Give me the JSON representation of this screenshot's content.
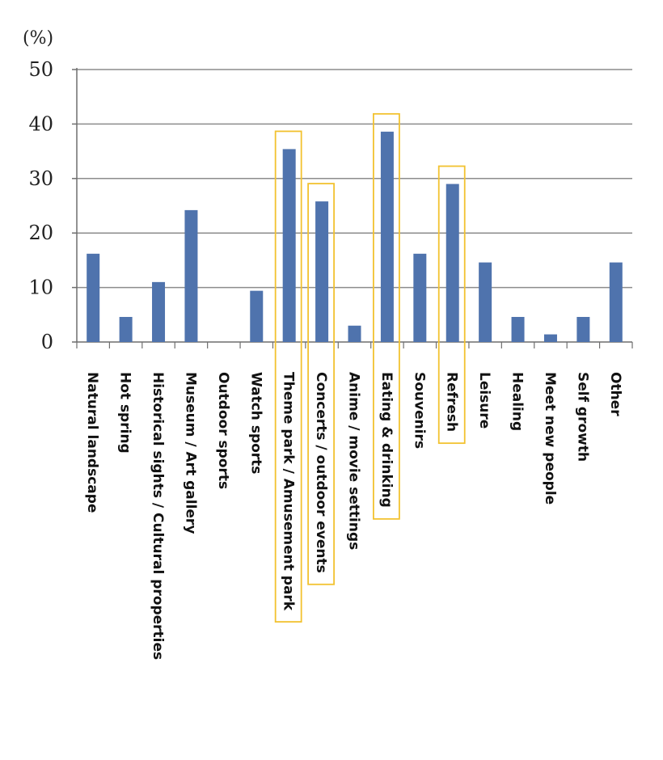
{
  "chart_data": {
    "type": "bar",
    "y_unit_label": "(%)",
    "ylim": [
      0,
      50
    ],
    "yticks": [
      0,
      10,
      20,
      30,
      40,
      50
    ],
    "grid": true,
    "categories": [
      "Natural landscape",
      "Hot spring",
      "Historical sights / Cultural properties",
      "Museum / Art gallery",
      "Outdoor sports",
      "Watch sports",
      "Theme park / Amusement park",
      "Concerts / outdoor events",
      "Anime / movie settings",
      "Eating & drinking",
      "Souvenirs",
      "Refresh",
      "Leisure",
      "Healing",
      "Meet new people",
      "Self growth",
      "Other"
    ],
    "values": [
      16.2,
      4.6,
      11.0,
      24.2,
      0,
      9.4,
      35.4,
      25.8,
      3.0,
      38.6,
      16.2,
      29.0,
      14.6,
      4.6,
      1.4,
      4.6,
      14.6
    ],
    "highlighted": [
      "Theme park / Amusement park",
      "Concerts / outdoor events",
      "Eating & drinking",
      "Refresh"
    ],
    "colors": {
      "bar": "#4f73ad",
      "grid": "#8c8c8c",
      "axis": "#6e6e6e",
      "highlight": "#f2c230"
    }
  }
}
